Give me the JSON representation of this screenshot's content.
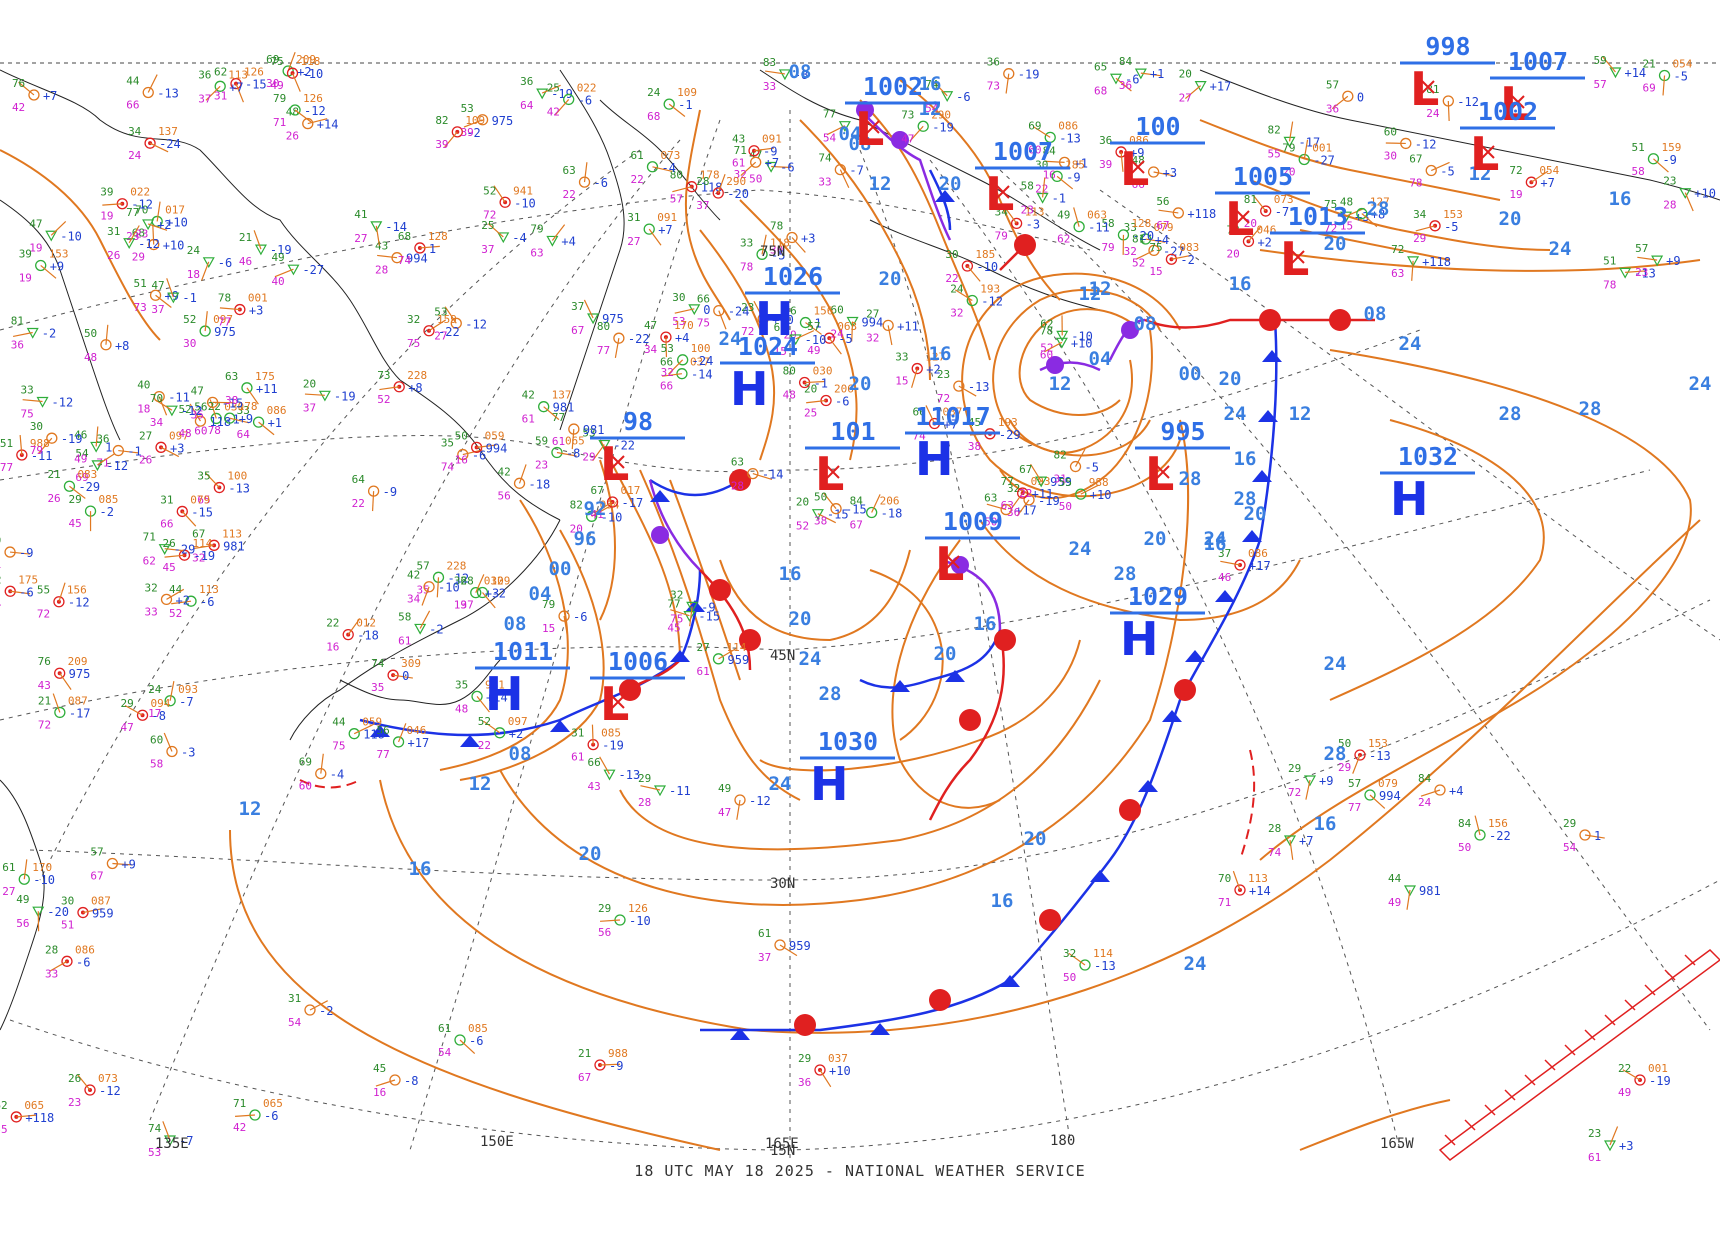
{
  "caption": "18 UTC MAY 18 2025 - NATIONAL WEATHER SERVICE",
  "colors": {
    "isobar": "#e07820",
    "isobar_label": "#3a7fe0",
    "high": "#1c32e6",
    "low": "#e02020",
    "cold_front": "#1c32e6",
    "warm_front": "#e02020",
    "occluded_front": "#8a2be2",
    "grid": "#555555",
    "coast": "#222222"
  },
  "lat_labels": [
    "75N",
    "45N",
    "30N",
    "15N"
  ],
  "lon_labels": [
    "135E",
    "150E",
    "165E",
    "180",
    "165W"
  ],
  "pressure_systems": [
    {
      "type": "L",
      "value": "1002"
    },
    {
      "type": "L",
      "value": "1007"
    },
    {
      "type": "L",
      "value": "100"
    },
    {
      "type": "L",
      "value": "1005"
    },
    {
      "type": "H",
      "value": "1026"
    },
    {
      "type": "H",
      "value": "1024"
    },
    {
      "type": "L",
      "value": "98"
    },
    {
      "type": "L",
      "value": "101"
    },
    {
      "type": "H",
      "value": "11017"
    },
    {
      "type": "L",
      "value": "1009"
    },
    {
      "type": "H",
      "value": "1030"
    },
    {
      "type": "H",
      "value": "1011"
    },
    {
      "type": "L",
      "value": "1006"
    },
    {
      "type": "L",
      "value": "995"
    },
    {
      "type": "H",
      "value": "1029"
    },
    {
      "type": "H",
      "value": "1032"
    },
    {
      "type": "L",
      "value": "1013"
    },
    {
      "type": "L",
      "value": "1007"
    },
    {
      "type": "L",
      "value": "1002"
    },
    {
      "type": "L",
      "value": "998"
    }
  ],
  "isobar_labels": [
    "08",
    "16",
    "20",
    "12",
    "08",
    "04",
    "12",
    "20",
    "24",
    "16",
    "20",
    "12",
    "08",
    "04",
    "00",
    "92",
    "96",
    "00",
    "04",
    "08",
    "16",
    "20",
    "24",
    "28",
    "24",
    "20",
    "16",
    "12",
    "08",
    "12",
    "16",
    "20",
    "24",
    "28",
    "24",
    "20",
    "16",
    "28",
    "24",
    "20",
    "16",
    "12",
    "24",
    "28",
    "28",
    "24",
    "28",
    "24",
    "20",
    "16",
    "16",
    "20",
    "20",
    "24",
    "28",
    "12",
    "08",
    "16",
    "24",
    "28",
    "20",
    "12",
    "16",
    "12"
  ],
  "station_values": [
    "975",
    "+17",
    "+9",
    "994",
    "+4",
    "+14",
    "981",
    "-13",
    "959",
    "+10",
    "+7",
    "-22",
    "1",
    "-19",
    "+3",
    "-6",
    "-2",
    "-12",
    "-7",
    "-6",
    "-8",
    "-9",
    "-11",
    "-10",
    "-12",
    "-13",
    "-5",
    "-3",
    "-2",
    "-1",
    "+8",
    "+3",
    "+2",
    "+1",
    "118",
    "-15",
    "-10",
    "-6",
    "-24",
    "-19",
    "-17",
    "-14",
    "-9",
    "-12",
    "-20",
    "-27",
    "-18",
    "-19",
    "-29",
    "-4",
    "+11",
    "+118",
    "-10",
    "+10",
    "-5",
    "-15",
    "-6",
    "+9",
    "+7",
    "0",
    "-1",
    "-12",
    "+2"
  ],
  "station_small": [
    "097",
    "083",
    "086",
    "093",
    "079",
    "094",
    "113",
    "063",
    "114",
    "022",
    "037",
    "054",
    "156",
    "109",
    "001",
    "127",
    "085",
    "046",
    "073",
    "059",
    "065",
    "941",
    "988",
    "100",
    "126",
    "017",
    "153",
    "159",
    "309",
    "290",
    "228",
    "206",
    "209",
    "193",
    "178",
    "175",
    "170",
    "185",
    "137",
    "118",
    "087",
    "086",
    "091",
    "113",
    "128",
    "030",
    "012"
  ]
}
